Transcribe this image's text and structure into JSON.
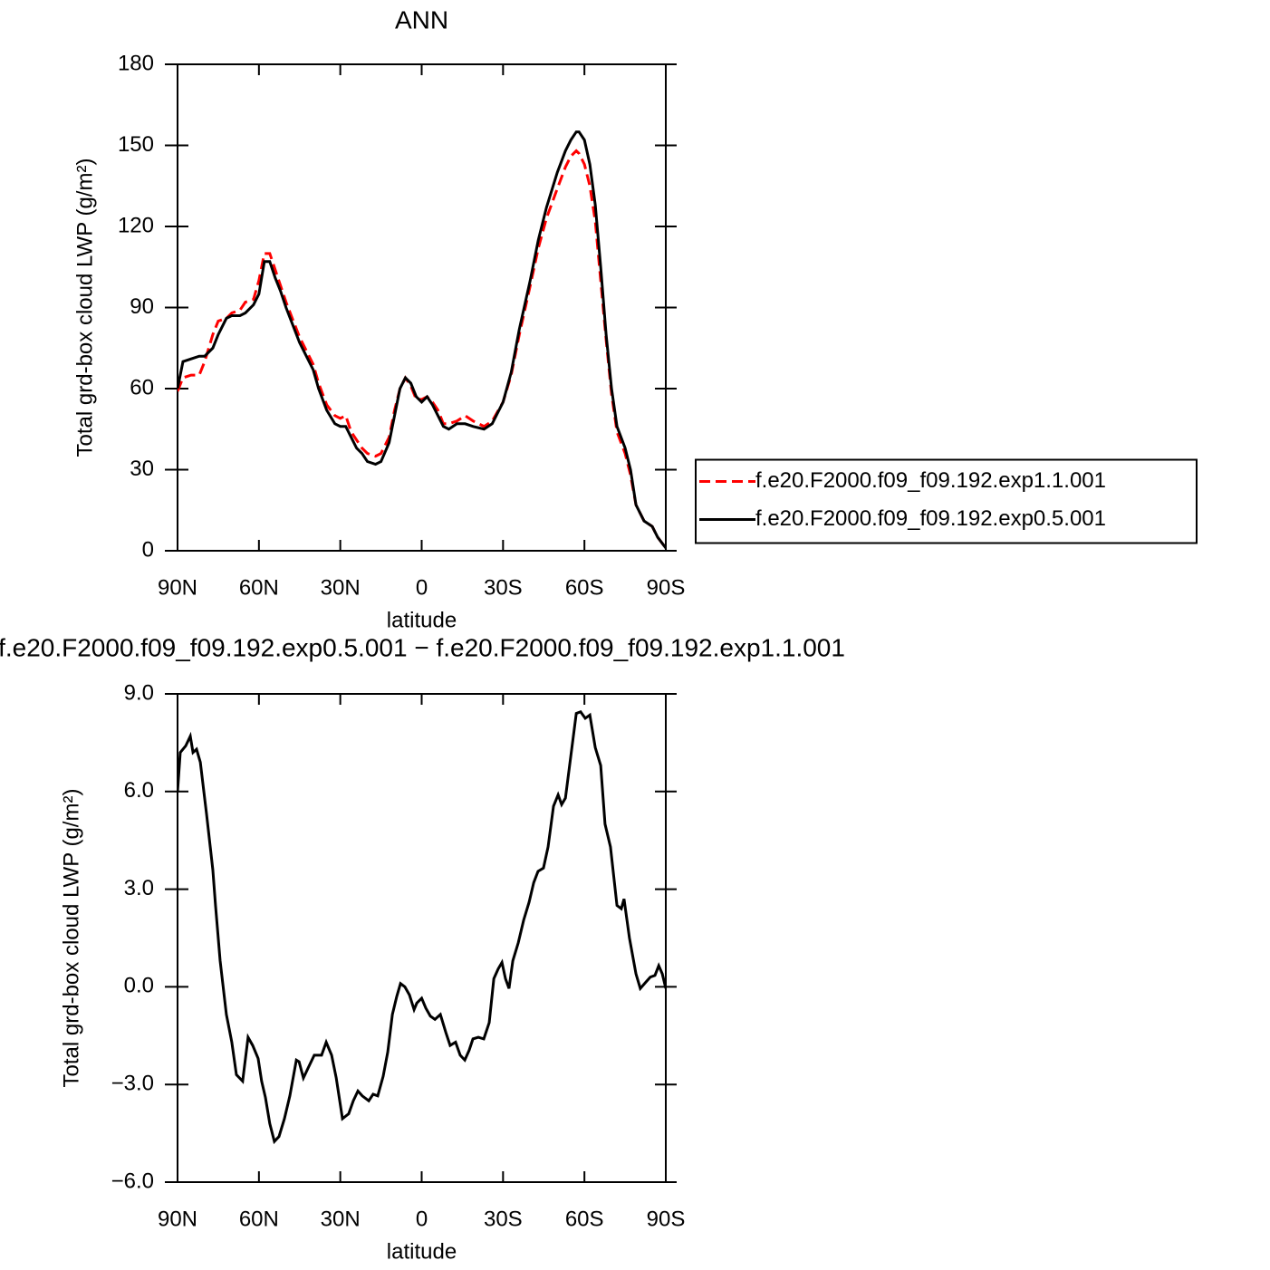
{
  "chart_data": [
    {
      "type": "line",
      "title": "ANN",
      "xlabel": "latitude",
      "ylabel": "Total grd-box cloud LWP (g/m²)",
      "x": [
        90,
        88,
        85,
        82,
        80,
        77,
        75,
        72,
        70,
        67,
        65,
        62,
        60,
        58,
        56,
        54,
        52,
        50,
        45,
        40,
        38,
        35,
        32,
        30,
        28,
        26,
        24,
        22,
        20,
        17,
        15,
        12,
        10,
        8,
        6,
        4,
        2,
        0,
        -2,
        -4,
        -6,
        -8,
        -10,
        -13,
        -16,
        -19,
        -23,
        -26,
        -30,
        -33,
        -36,
        -40,
        -43,
        -46,
        -50,
        -53,
        -55,
        -57,
        -58,
        -60,
        -62,
        -64,
        -66,
        -68,
        -70,
        -72,
        -75,
        -77,
        -79,
        -82,
        -85,
        -87,
        -90
      ],
      "series": [
        {
          "name": "f.e20.F2000.f09_f09.192.exp1.1.001",
          "color": "#ff0000",
          "linestyle": "dashed",
          "values": [
            59,
            64,
            65,
            65,
            70,
            80,
            85,
            86,
            88,
            89,
            92,
            93,
            100,
            110,
            110,
            104,
            98,
            92,
            79,
            69,
            62,
            54,
            50,
            49,
            50,
            44,
            41,
            38,
            36,
            35,
            36,
            42,
            52,
            60,
            64,
            61,
            56,
            56,
            57,
            55,
            52,
            47,
            47,
            48,
            50,
            48,
            46,
            48,
            55,
            65,
            80,
            98,
            112,
            123,
            134,
            142,
            146,
            148,
            147,
            143,
            135,
            122,
            100,
            78,
            58,
            44,
            36,
            28,
            17,
            11,
            9,
            5,
            1
          ]
        },
        {
          "name": "f.e20.F2000.f09_f09.192.exp0.5.001",
          "color": "#000000",
          "linestyle": "solid",
          "values": [
            60,
            70,
            71,
            72,
            72,
            75,
            80,
            86,
            87,
            87,
            88,
            91,
            95,
            107,
            107,
            101,
            96,
            90,
            77,
            67,
            60,
            52,
            47,
            46,
            46,
            42,
            38,
            36,
            33,
            32,
            33,
            40,
            50,
            60,
            64,
            62,
            57,
            55,
            57,
            54,
            50,
            46,
            45,
            47,
            47,
            46,
            45,
            47,
            55,
            66,
            82,
            100,
            115,
            127,
            140,
            148,
            152,
            155,
            155,
            152,
            143,
            128,
            105,
            80,
            60,
            46,
            38,
            30,
            17,
            11,
            9,
            5,
            1
          ]
        }
      ],
      "xlim": [
        90,
        -90
      ],
      "xticks": [
        {
          "value": 90,
          "label": "90N"
        },
        {
          "value": 60,
          "label": "60N"
        },
        {
          "value": 30,
          "label": "30N"
        },
        0,
        {
          "value": -30,
          "label": "30S"
        },
        {
          "value": -60,
          "label": "60S"
        },
        {
          "value": -90,
          "label": "90S"
        }
      ],
      "ylim": [
        0,
        180
      ],
      "yticks": [
        0,
        30,
        60,
        90,
        120,
        150,
        180
      ],
      "legend": "right"
    },
    {
      "type": "line",
      "title": "f.e20.F2000.f09_f09.192.exp0.5.001 − f.e20.F2000.f09_f09.192.exp1.1.001",
      "xlabel": "latitude",
      "ylabel": "Total grd-box cloud LWP (g/m²)",
      "x": [
        90,
        89,
        87,
        85.3,
        84.3,
        83,
        81.6,
        79.3,
        77,
        76,
        74.3,
        72,
        70,
        68.3,
        66,
        64,
        62.3,
        60.3,
        59,
        57.6,
        56,
        54.3,
        52.6,
        50.6,
        48.6,
        46.2,
        45.2,
        43.6,
        41.9,
        39.6,
        36.9,
        35.2,
        33.2,
        31.5,
        29.2,
        26.9,
        25.2,
        23.5,
        21.9,
        19.5,
        17.9,
        16.2,
        14.2,
        12.5,
        10.8,
        9.2,
        7.8,
        6.2,
        4.5,
        2.8,
        1.8,
        0,
        -1.5,
        -3.2,
        -4.9,
        -6.9,
        -8.9,
        -10.5,
        -12.5,
        -14.2,
        -15.9,
        -17.5,
        -18.9,
        -20.9,
        -22.9,
        -24.9,
        -26.6,
        -28.2,
        -29.6,
        -30.9,
        -32.2,
        -33.6,
        -35.6,
        -37.6,
        -39.6,
        -41.3,
        -42.9,
        -44.9,
        -46.6,
        -48.6,
        -50.3,
        -51.6,
        -53,
        -55,
        -57,
        -58.6,
        -60.3,
        -62,
        -64,
        -66,
        -67.6,
        -69.6,
        -72,
        -73.6,
        -74.6,
        -76.6,
        -79,
        -80.6,
        -82.7,
        -84.3,
        -86,
        -87.4,
        -88.7,
        -90
      ],
      "series": [
        {
          "color": "#000000",
          "linestyle": "solid",
          "values": [
            6.0,
            7.2,
            7.4,
            7.7,
            7.2,
            7.3,
            6.9,
            5.3,
            3.6,
            2.5,
            0.8,
            -0.85,
            -1.7,
            -2.7,
            -2.9,
            -1.55,
            -1.8,
            -2.2,
            -2.9,
            -3.4,
            -4.2,
            -4.75,
            -4.6,
            -4.05,
            -3.35,
            -2.25,
            -2.3,
            -2.8,
            -2.5,
            -2.1,
            -2.1,
            -1.7,
            -2.1,
            -2.8,
            -4.05,
            -3.9,
            -3.5,
            -3.2,
            -3.35,
            -3.5,
            -3.3,
            -3.35,
            -2.75,
            -2,
            -0.85,
            -0.3,
            0.1,
            0,
            -0.25,
            -0.7,
            -0.5,
            -0.35,
            -0.65,
            -0.9,
            -1.0,
            -0.85,
            -1.4,
            -1.8,
            -1.7,
            -2.1,
            -2.25,
            -1.95,
            -1.6,
            -1.55,
            -1.6,
            -1.1,
            0.25,
            0.55,
            0.75,
            0.25,
            -0.05,
            0.8,
            1.35,
            2.05,
            2.6,
            3.2,
            3.55,
            3.65,
            4.3,
            5.55,
            5.9,
            5.6,
            5.8,
            7.1,
            8.4,
            8.45,
            8.25,
            8.35,
            7.35,
            6.8,
            5.0,
            4.3,
            2.5,
            2.4,
            2.7,
            1.5,
            0.4,
            -0.05,
            0.15,
            0.3,
            0.35,
            0.65,
            0.4,
            -0.05
          ]
        }
      ],
      "xlim": [
        90,
        -90
      ],
      "xticks": [
        {
          "value": 90,
          "label": "90N"
        },
        {
          "value": 60,
          "label": "60N"
        },
        {
          "value": 30,
          "label": "30N"
        },
        0,
        {
          "value": -30,
          "label": "30S"
        },
        {
          "value": -60,
          "label": "60S"
        },
        {
          "value": -90,
          "label": "90S"
        }
      ],
      "ylim": [
        -6,
        9
      ],
      "yticks": [
        {
          "value": -6,
          "label": "−6.0"
        },
        {
          "value": -3,
          "label": "−3.0"
        },
        {
          "value": 0,
          "label": "0.0"
        },
        {
          "value": 3,
          "label": "3.0"
        },
        {
          "value": 6,
          "label": "6.0"
        },
        {
          "value": 9,
          "label": "9.0"
        }
      ]
    }
  ]
}
